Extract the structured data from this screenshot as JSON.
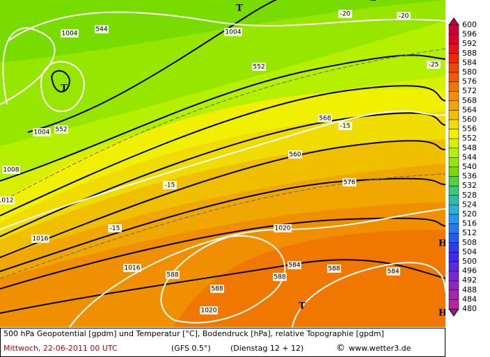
{
  "colorbar": {
    "levels": [
      600,
      596,
      592,
      588,
      584,
      580,
      576,
      572,
      568,
      564,
      560,
      556,
      552,
      548,
      544,
      540,
      536,
      532,
      528,
      524,
      520,
      516,
      512,
      508,
      504,
      500,
      496,
      492,
      488,
      484,
      480
    ],
    "colors": [
      "#c8003c",
      "#dc0028",
      "#e61414",
      "#f02800",
      "#f04600",
      "#f05a00",
      "#f07800",
      "#f09000",
      "#f0a800",
      "#f0c000",
      "#f0dc00",
      "#f0f000",
      "#d8f000",
      "#b4f000",
      "#96e600",
      "#78dc00",
      "#50d23c",
      "#3cc878",
      "#28beaa",
      "#28b4d2",
      "#2896f0",
      "#2878f0",
      "#285af0",
      "#283cf0",
      "#3c28f0",
      "#5a28e6",
      "#7828d2",
      "#8c28be",
      "#a028aa",
      "#b4289a",
      "#8c1e8c"
    ]
  },
  "map": {
    "labels": [
      "T",
      "-20",
      "-20",
      "1004",
      "544",
      "1004",
      "552",
      "T",
      "552",
      "1004",
      "568",
      "-15",
      "560",
      "1008",
      "-15",
      "576",
      "1012",
      "-15",
      "1020",
      "1016",
      "1016",
      "584",
      "584",
      "588",
      "588",
      "588",
      "588",
      "1020",
      "T",
      "H",
      "H",
      "-25"
    ]
  },
  "footer": {
    "line1": "500 hPa Geopotential [gpdm] und Temperatur [°C], Bodendruck [hPa], relative Topographie [gpdm]",
    "date": "Mittwoch, 22-06-2011   00 UTC",
    "model": "(GFS 0.5°)",
    "run": "(Dienstag 12 + 12)",
    "copyright": "©",
    "site": "www.wetter3.de"
  }
}
